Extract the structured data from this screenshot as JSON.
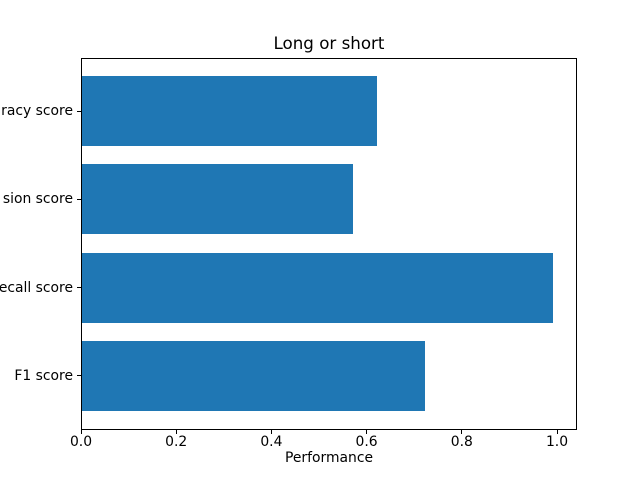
{
  "chart_data": {
    "type": "bar",
    "orientation": "horizontal",
    "title": "Long or short",
    "xlabel": "Performance",
    "ylabel": "",
    "categories": [
      "racy score",
      "sion score",
      "ecall score",
      "F1 score"
    ],
    "values": [
      0.62,
      0.57,
      0.99,
      0.72
    ],
    "x_tick_values": [
      0.0,
      0.2,
      0.4,
      0.6,
      0.8,
      1.0
    ],
    "x_tick_labels": [
      "0.0",
      "0.2",
      "0.4",
      "0.6",
      "0.8",
      "1.0"
    ],
    "xlim": [
      0.0,
      1.042
    ],
    "grid": false,
    "legend": false,
    "bar_color": "#1f77b4",
    "background_color": "#ffffff",
    "axis_color": "#000000",
    "y_labels_clipped_at_left_edge": true
  }
}
